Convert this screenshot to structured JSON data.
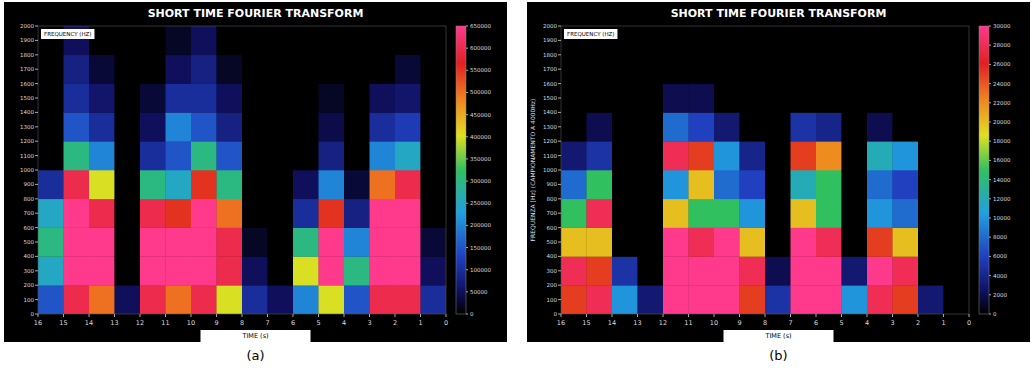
{
  "chart_data": [
    {
      "type": "heatmap",
      "title": "SHORT TIME FOURIER TRANSFORM",
      "caption": "(a)",
      "xlabel": "TIME (s)",
      "ylabel": "FREQUENCY (HZ)",
      "x_bins": [
        16,
        15,
        14,
        13,
        12,
        11,
        10,
        9,
        8,
        7,
        6,
        5,
        4,
        3,
        2,
        1,
        0
      ],
      "y_bins": [
        0,
        200,
        400,
        600,
        800,
        1000,
        1200,
        1400,
        1600,
        1800,
        2000
      ],
      "xlim": [
        16,
        0
      ],
      "xticks": [
        16,
        15,
        14,
        13,
        12,
        11,
        10,
        9,
        8,
        7,
        6,
        5,
        4,
        3,
        2,
        1,
        0
      ],
      "ylim": [
        0,
        2000
      ],
      "yticks": [
        0,
        100,
        200,
        300,
        400,
        500,
        600,
        700,
        800,
        900,
        1000,
        1100,
        1200,
        1300,
        1400,
        1500,
        1600,
        1700,
        1800,
        1900,
        2000
      ],
      "colorbar_range": [
        0,
        650000
      ],
      "colorbar_ticks": [
        0,
        50000,
        100000,
        150000,
        200000,
        250000,
        300000,
        350000,
        400000,
        450000,
        500000,
        550000,
        600000,
        650000
      ],
      "cells": [
        [
          150000,
          250000,
          300000,
          250000,
          100000,
          0,
          0,
          0,
          0,
          0
        ],
        [
          600000,
          650000,
          650000,
          650000,
          600000,
          300000,
          150000,
          100000,
          80000,
          50000
        ],
        [
          500000,
          650000,
          650000,
          600000,
          400000,
          200000,
          100000,
          60000,
          30000,
          0
        ],
        [
          50000,
          0,
          0,
          0,
          0,
          0,
          0,
          0,
          0,
          0
        ],
        [
          600000,
          650000,
          650000,
          600000,
          300000,
          100000,
          50000,
          30000,
          0,
          0
        ],
        [
          500000,
          650000,
          650000,
          550000,
          250000,
          150000,
          200000,
          100000,
          50000,
          20000
        ],
        [
          600000,
          650000,
          650000,
          650000,
          550000,
          300000,
          150000,
          100000,
          80000,
          50000
        ],
        [
          400000,
          600000,
          600000,
          500000,
          300000,
          150000,
          80000,
          50000,
          20000,
          0
        ],
        [
          100000,
          50000,
          20000,
          0,
          0,
          0,
          0,
          0,
          0,
          0
        ],
        [
          50000,
          0,
          0,
          0,
          0,
          0,
          0,
          0,
          0,
          0
        ],
        [
          200000,
          400000,
          300000,
          100000,
          50000,
          0,
          0,
          0,
          0,
          0
        ],
        [
          400000,
          650000,
          650000,
          550000,
          200000,
          80000,
          40000,
          20000,
          0,
          0
        ],
        [
          150000,
          300000,
          200000,
          80000,
          30000,
          0,
          0,
          0,
          0,
          0
        ],
        [
          600000,
          650000,
          650000,
          650000,
          500000,
          200000,
          100000,
          50000,
          0,
          0
        ],
        [
          600000,
          650000,
          650000,
          650000,
          600000,
          250000,
          120000,
          60000,
          30000,
          0
        ],
        [
          100000,
          50000,
          30000,
          0,
          0,
          0,
          0,
          0,
          0,
          0
        ]
      ]
    },
    {
      "type": "heatmap",
      "title": "SHORT TIME FOURIER TRANSFORM",
      "caption": "(b)",
      "xlabel": "TIME (s)",
      "ylabel": "FREQUENCY (HZ)",
      "annotations": [
        "FREQUENZA [Hz] (CAMPIONAMENTO A 4000Hz)"
      ],
      "x_bins": [
        16,
        15,
        14,
        13,
        12,
        11,
        10,
        9,
        8,
        7,
        6,
        5,
        4,
        3,
        2,
        1,
        0
      ],
      "y_bins": [
        0,
        200,
        400,
        600,
        800,
        1000,
        1200,
        1400,
        1600,
        1800,
        2000
      ],
      "xlim": [
        16,
        0
      ],
      "xticks": [
        16,
        15,
        14,
        13,
        12,
        11,
        10,
        9,
        8,
        7,
        6,
        5,
        4,
        3,
        2,
        1,
        0
      ],
      "ylim": [
        0,
        2000
      ],
      "yticks": [
        0,
        100,
        200,
        300,
        400,
        500,
        600,
        700,
        800,
        900,
        1000,
        1100,
        1200,
        1300,
        1400,
        1500,
        1600,
        1700,
        1800,
        1900,
        2000
      ],
      "colorbar_range": [
        0,
        30000
      ],
      "colorbar_ticks": [
        0,
        2000,
        4000,
        6000,
        8000,
        10000,
        12000,
        14000,
        16000,
        18000,
        20000,
        22000,
        24000,
        26000,
        28000,
        30000
      ],
      "cells": [
        [
          25000,
          28000,
          20000,
          15000,
          8000,
          3000,
          0,
          0,
          0,
          0
        ],
        [
          28000,
          25000,
          20000,
          28000,
          15000,
          5000,
          2000,
          0,
          0,
          0
        ],
        [
          10000,
          5000,
          0,
          0,
          0,
          0,
          0,
          0,
          0,
          0
        ],
        [
          3000,
          0,
          0,
          0,
          0,
          0,
          0,
          0,
          0,
          0
        ],
        [
          30000,
          30000,
          30000,
          20000,
          10000,
          28000,
          8000,
          2000,
          0,
          0
        ],
        [
          30000,
          30000,
          28000,
          15000,
          20000,
          25000,
          6000,
          2000,
          0,
          0
        ],
        [
          30000,
          30000,
          30000,
          15000,
          8000,
          10000,
          3000,
          0,
          0,
          0
        ],
        [
          25000,
          28000,
          20000,
          10000,
          6000,
          4000,
          0,
          0,
          0,
          0
        ],
        [
          5000,
          2000,
          0,
          0,
          0,
          0,
          0,
          0,
          0,
          0
        ],
        [
          30000,
          30000,
          30000,
          20000,
          12000,
          25000,
          5000,
          0,
          0,
          0
        ],
        [
          30000,
          30000,
          28000,
          15000,
          15000,
          22000,
          4000,
          0,
          0,
          0
        ],
        [
          10000,
          3000,
          0,
          0,
          0,
          0,
          0,
          0,
          0,
          0
        ],
        [
          28000,
          30000,
          25000,
          10000,
          8000,
          12000,
          2000,
          0,
          0,
          0
        ],
        [
          25000,
          28000,
          20000,
          8000,
          6000,
          10000,
          0,
          0,
          0,
          0
        ],
        [
          3000,
          0,
          0,
          0,
          0,
          0,
          0,
          0,
          0,
          0
        ],
        [
          0,
          0,
          0,
          0,
          0,
          0,
          0,
          0,
          0,
          0
        ]
      ]
    }
  ]
}
